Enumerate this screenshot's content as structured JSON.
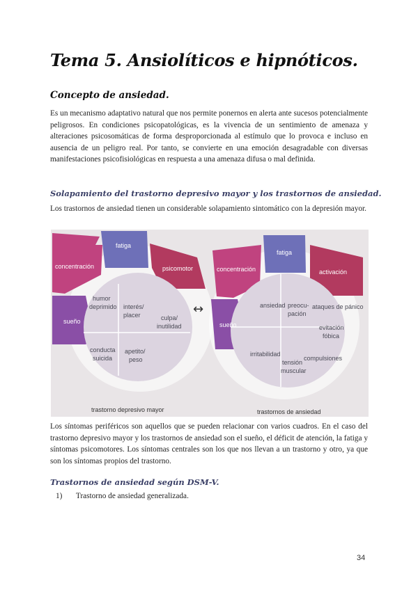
{
  "title": "Tema 5. Ansiolíticos e hipnóticos.",
  "sections": {
    "concept": {
      "heading": "Concepto de ansiedad.",
      "paragraph": "Es un mecanismo adaptativo natural que nos permite ponernos en alerta ante sucesos potencialmente peligrosos. En condiciones psicopatológicas, es la vivencia de un sentimiento de amenaza y alteraciones psicosomáticas de forma desproporcionada al estímulo que lo provoca e incluso en ausencia de un peligro real. Por tanto, se convierte en una emoción desagradable con diversas manifestaciones psicofisiológicas en respuesta a una amenaza difusa o mal definida."
    },
    "overlap": {
      "heading": "Solapamiento del trastorno depresivo mayor y los trastornos de ansiedad.",
      "intro": "Los trastornos de ansiedad tienen un considerable solapamiento sintomático con la depresión mayor.",
      "after": "Los síntomas periféricos son aquellos que se pueden relacionar con varios cuadros. En el caso del trastorno depresivo mayor y los trastornos de ansiedad son el sueño, el déficit de atención, la fatiga y síntomas psicomotores. Los síntomas centrales son los que nos llevan a un trastorno y otro, ya que son los síntomas propios del trastorno."
    },
    "dsm": {
      "heading": "Trastornos de ansiedad según DSM-V.",
      "items": [
        {
          "number": "1)",
          "text": "Trastorno de ansiedad generalizada."
        }
      ]
    }
  },
  "figure": {
    "left": {
      "caption": "trastorno depresivo mayor",
      "outer": {
        "top": "fatiga",
        "left": "concentración",
        "right": "psicomotor",
        "side": "sueño"
      },
      "inner": [
        "humor deprimido",
        "interés/ placer",
        "culpa/ inutilidad",
        "conducta suicida",
        "apetito/ peso"
      ]
    },
    "right": {
      "caption": "trastornos de ansiedad",
      "outer": {
        "top": "fatiga",
        "left": "concentración",
        "right": "activación",
        "side": "sueño"
      },
      "inner": [
        "ansiedad",
        "preocu- pación",
        "ataques de pánico",
        "evitación fóbica",
        "compulsiones",
        "tensión muscular",
        "irritabilidad"
      ]
    },
    "arrow": "↔",
    "colors": {
      "magenta": "#c0437f",
      "purple": "#8a4fa6",
      "blue": "#6e70b8",
      "crimson": "#b23a5f",
      "inner": "#dcd4e0",
      "bg": "#e8e4e6"
    }
  },
  "page_number": "34"
}
